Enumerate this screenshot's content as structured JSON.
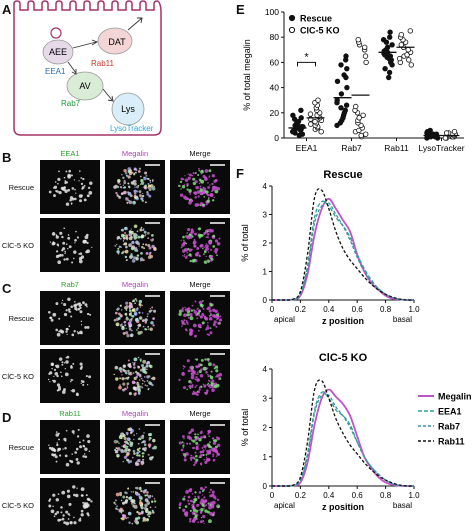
{
  "panel_letters": {
    "a": "A",
    "b": "B",
    "c": "C",
    "d": "D",
    "e": "E",
    "f": "F"
  },
  "diagram": {
    "nodes": {
      "aee": "AEE",
      "dat": "DAT",
      "av": "AV",
      "lys": "Lys"
    },
    "labels": {
      "eea1": "EEA1",
      "rab11": "Rab11",
      "rab7": "Rab7",
      "lysotracker": "LysoTracker"
    }
  },
  "colors": {
    "membrane": "#a3346a",
    "eea1": "#2a6fb3",
    "rab11": "#c0392b",
    "rab7": "#1e9a3c",
    "lysotracker": "#2ea3db",
    "megalin_line": "#c054c8",
    "eea1_line": "#2aa198",
    "rab7_line": "#3f8fa0",
    "rab11_line": "#111111"
  },
  "micrographs": {
    "b": {
      "channels": [
        "EEA1",
        "Megalin",
        "Merge"
      ],
      "rows": [
        "Rescue",
        "ClC-5 KO"
      ]
    },
    "c": {
      "channels": [
        "Rab7",
        "Megalin",
        "Merge"
      ],
      "rows": [
        "Rescue",
        "ClC-5 KO"
      ]
    },
    "d": {
      "channels": [
        "Rab11",
        "Megalin",
        "Merge"
      ],
      "rows": [
        "Rescue",
        "ClC-5 KO"
      ]
    }
  },
  "chart_data": [
    {
      "type": "scatter",
      "ylabel": "% of total megalin",
      "ylim": [
        0,
        100
      ],
      "yticks": [
        0,
        20,
        40,
        60,
        80,
        100
      ],
      "categories": [
        "EEA1",
        "Rab7",
        "Rab11",
        "LysoTracker"
      ],
      "legend": {
        "position": "top-left",
        "entries": [
          {
            "name": "Rescue",
            "marker": "filled"
          },
          {
            "name": "ClC-5 KO",
            "marker": "open"
          }
        ]
      },
      "significance": {
        "category": "EEA1",
        "label": "*"
      },
      "series": [
        {
          "name": "Rescue",
          "marker": "filled",
          "means": [
            8,
            32,
            68,
            2
          ],
          "points": [
            [
              2,
              3,
              4,
              5,
              5,
              6,
              6,
              7,
              7,
              8,
              8,
              9,
              9,
              10,
              10,
              11,
              12,
              13,
              15,
              16,
              18,
              22
            ],
            [
              10,
              12,
              14,
              16,
              18,
              20,
              22,
              24,
              26,
              28,
              30,
              35,
              40,
              45,
              48,
              50,
              55,
              58,
              62,
              65
            ],
            [
              48,
              52,
              55,
              58,
              60,
              62,
              63,
              64,
              65,
              66,
              67,
              68,
              69,
              70,
              72,
              74,
              76,
              78,
              80,
              84
            ],
            [
              0,
              0,
              1,
              1,
              1,
              2,
              2,
              2,
              3,
              3,
              3,
              4,
              5,
              6
            ]
          ]
        },
        {
          "name": "ClC-5 KO",
          "marker": "open",
          "means": [
            16,
            34,
            72,
            2
          ],
          "points": [
            [
              5,
              7,
              8,
              9,
              10,
              11,
              12,
              13,
              14,
              15,
              16,
              17,
              18,
              19,
              20,
              22,
              24,
              26,
              28,
              30
            ],
            [
              1,
              2,
              3,
              5,
              6,
              8,
              10,
              12,
              14,
              16,
              18,
              20,
              22,
              25,
              60,
              65,
              70,
              72,
              74,
              76,
              78
            ],
            [
              58,
              60,
              62,
              63,
              65,
              66,
              68,
              70,
              72,
              74,
              76,
              78,
              80,
              82,
              85
            ],
            [
              0,
              0,
              1,
              1,
              1,
              2,
              2,
              2,
              3,
              3,
              3,
              4,
              4,
              5
            ]
          ]
        }
      ]
    },
    {
      "type": "line",
      "title": "Rescue",
      "ylabel": "% of total",
      "xlabel": "z position",
      "xlim": [
        0,
        1
      ],
      "ylim": [
        0,
        4
      ],
      "xticks": [
        0,
        0.2,
        0.4,
        0.6,
        0.8,
        1.0
      ],
      "xtick_labels": [
        "0",
        "0.2",
        "0.4",
        "0.6",
        "0.8",
        "1.0"
      ],
      "yticks": [
        0,
        1,
        2,
        3,
        4
      ],
      "axis_annotations": {
        "left": "apical",
        "right": "basal"
      },
      "x": [
        0,
        0.05,
        0.1,
        0.15,
        0.2,
        0.25,
        0.3,
        0.35,
        0.4,
        0.45,
        0.5,
        0.55,
        0.6,
        0.65,
        0.7,
        0.75,
        0.8,
        0.85,
        0.9,
        0.95,
        1.0
      ],
      "series": [
        {
          "name": "Megalin",
          "style": "solid",
          "values": [
            0,
            0,
            0,
            0.02,
            0.15,
            0.9,
            2.3,
            3.2,
            3.55,
            3.2,
            2.8,
            2.4,
            1.6,
            1.0,
            0.6,
            0.35,
            0.15,
            0.05,
            0.02,
            0,
            0
          ]
        },
        {
          "name": "EEA1",
          "style": "dashed",
          "values": [
            0,
            0,
            0,
            0.02,
            0.2,
            1.2,
            2.9,
            3.45,
            3.3,
            2.9,
            2.6,
            2.2,
            1.6,
            1.1,
            0.7,
            0.4,
            0.2,
            0.08,
            0.02,
            0,
            0
          ]
        },
        {
          "name": "Rab7",
          "style": "dashed",
          "values": [
            0,
            0,
            0,
            0.02,
            0.2,
            1.1,
            2.7,
            3.3,
            3.4,
            3.0,
            2.6,
            2.1,
            1.5,
            1.0,
            0.65,
            0.4,
            0.2,
            0.08,
            0.02,
            0,
            0
          ]
        },
        {
          "name": "Rab11",
          "style": "dashed",
          "values": [
            0,
            0,
            0,
            0.03,
            0.3,
            1.6,
            3.6,
            3.85,
            3.2,
            2.4,
            1.8,
            1.4,
            1.1,
            0.8,
            0.55,
            0.35,
            0.2,
            0.1,
            0.03,
            0,
            0
          ]
        }
      ]
    },
    {
      "type": "line",
      "title": "ClC-5 KO",
      "ylabel": "% of total",
      "xlabel": "z position",
      "xlim": [
        0,
        1
      ],
      "ylim": [
        0,
        4
      ],
      "xticks": [
        0,
        0.2,
        0.4,
        0.6,
        0.8,
        1.0
      ],
      "xtick_labels": [
        "0",
        "0.2",
        "0.4",
        "0.6",
        "0.8",
        "1.0"
      ],
      "yticks": [
        0,
        1,
        2,
        3,
        4
      ],
      "axis_annotations": {
        "left": "apical",
        "right": "basal"
      },
      "legend": {
        "position": "right"
      },
      "x": [
        0,
        0.05,
        0.1,
        0.15,
        0.2,
        0.25,
        0.3,
        0.35,
        0.4,
        0.45,
        0.5,
        0.55,
        0.6,
        0.65,
        0.7,
        0.75,
        0.8,
        0.85,
        0.9,
        0.95,
        1.0
      ],
      "series": [
        {
          "name": "Megalin",
          "style": "solid",
          "values": [
            0,
            0,
            0,
            0.02,
            0.12,
            0.8,
            2.1,
            3.0,
            3.3,
            3.05,
            2.8,
            2.4,
            1.7,
            1.0,
            0.6,
            0.3,
            0.12,
            0.04,
            0.01,
            0,
            0
          ]
        },
        {
          "name": "EEA1",
          "style": "dashed",
          "values": [
            0,
            0,
            0,
            0.02,
            0.2,
            1.1,
            2.6,
            3.2,
            3.0,
            2.6,
            2.4,
            2.1,
            1.5,
            1.0,
            0.65,
            0.4,
            0.2,
            0.08,
            0.02,
            0,
            0
          ]
        },
        {
          "name": "Rab7",
          "style": "dashed",
          "values": [
            0,
            0,
            0,
            0.02,
            0.2,
            1.0,
            2.5,
            3.1,
            3.1,
            2.7,
            2.4,
            2.0,
            1.5,
            1.0,
            0.65,
            0.4,
            0.2,
            0.08,
            0.02,
            0,
            0
          ]
        },
        {
          "name": "Rab11",
          "style": "dashed",
          "values": [
            0,
            0,
            0,
            0.03,
            0.3,
            1.5,
            3.3,
            3.6,
            3.0,
            2.3,
            1.8,
            1.4,
            1.1,
            0.8,
            0.55,
            0.35,
            0.2,
            0.1,
            0.03,
            0,
            0
          ]
        }
      ]
    }
  ]
}
